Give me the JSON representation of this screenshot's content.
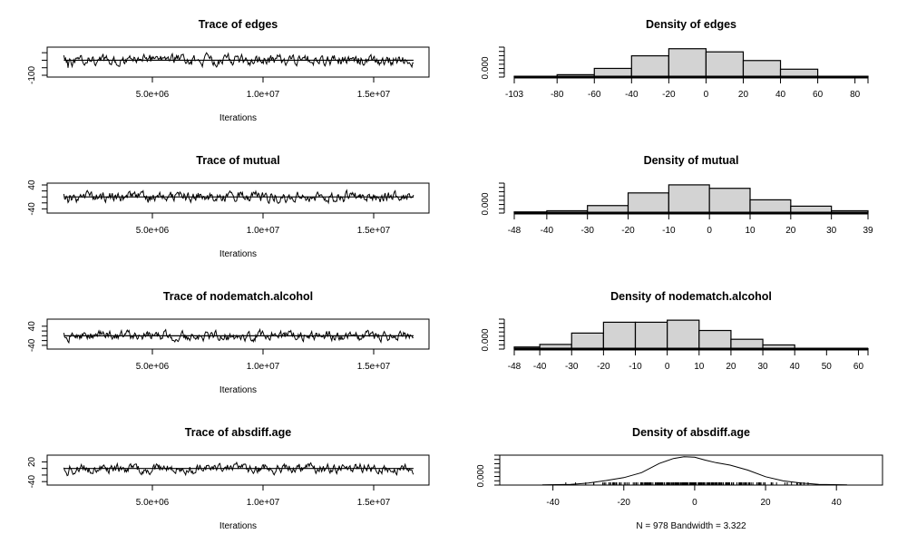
{
  "chart_data": [
    {
      "type": "line",
      "title": "Trace of edges",
      "xlabel": "Iterations",
      "ylabel": "",
      "x_ticks": [
        5000000,
        10000000,
        15000000
      ],
      "x_tick_labels": [
        "5.0e+06",
        "1.0e+07",
        "1.5e+07"
      ],
      "xlim": [
        1000000,
        16800000
      ],
      "y_ticks": [
        -100,
        -50,
        0,
        50
      ],
      "y_tick_labels": [
        "-100",
        "",
        "",
        ""
      ],
      "ylim": [
        -100,
        75
      ],
      "reference_line": 0,
      "series_seed": 11,
      "series_amplitude": 28,
      "n_points": 978
    },
    {
      "type": "bar",
      "title": "Density of edges",
      "xlabel": "",
      "ylabel": "",
      "y_tick_labels": [
        "0.000"
      ],
      "x_tick_labels": [
        "-103",
        "-80",
        "-60",
        "-40",
        "-20",
        "0",
        "20",
        "40",
        "60",
        "80"
      ],
      "x_ticks": [
        -103,
        -80,
        -60,
        -40,
        -20,
        0,
        20,
        40,
        60,
        80
      ],
      "xlim": [
        -103,
        87
      ],
      "bins": [
        [
          -103,
          -80
        ],
        [
          -80,
          -60
        ],
        [
          -60,
          -40
        ],
        [
          -40,
          -20
        ],
        [
          -20,
          0
        ],
        [
          0,
          20
        ],
        [
          20,
          40
        ],
        [
          40,
          60
        ],
        [
          60,
          87
        ]
      ],
      "values": [
        0.0005,
        0.0015,
        0.0055,
        0.0135,
        0.018,
        0.016,
        0.0105,
        0.005,
        0.0005
      ],
      "ylim": [
        0,
        0.019
      ]
    },
    {
      "type": "line",
      "title": "Trace of mutual",
      "xlabel": "Iterations",
      "ylabel": "",
      "x_ticks": [
        5000000,
        10000000,
        15000000
      ],
      "x_tick_labels": [
        "5.0e+06",
        "1.0e+07",
        "1.5e+07"
      ],
      "xlim": [
        1000000,
        16800000
      ],
      "y_ticks": [
        -40,
        -20,
        0,
        20,
        40
      ],
      "y_tick_labels": [
        "-40",
        "",
        "",
        "",
        "40"
      ],
      "ylim": [
        -48,
        40
      ],
      "reference_line": 0,
      "series_seed": 23,
      "series_amplitude": 14,
      "n_points": 978
    },
    {
      "type": "bar",
      "title": "Density of mutual",
      "xlabel": "",
      "ylabel": "",
      "y_tick_labels": [
        "0.000"
      ],
      "x_tick_labels": [
        "-48",
        "-40",
        "-30",
        "-20",
        "-10",
        "0",
        "10",
        "20",
        "30",
        "39"
      ],
      "x_ticks": [
        -48,
        -40,
        -30,
        -20,
        -10,
        0,
        10,
        20,
        30,
        39
      ],
      "xlim": [
        -48,
        39
      ],
      "bins": [
        [
          -48,
          -40
        ],
        [
          -40,
          -30
        ],
        [
          -30,
          -20
        ],
        [
          -20,
          -10
        ],
        [
          -10,
          0
        ],
        [
          0,
          10
        ],
        [
          10,
          20
        ],
        [
          20,
          30
        ],
        [
          30,
          39
        ]
      ],
      "values": [
        0.001,
        0.002,
        0.0065,
        0.0175,
        0.0245,
        0.0215,
        0.0115,
        0.006,
        0.002
      ],
      "ylim": [
        0,
        0.026
      ]
    },
    {
      "type": "line",
      "title": "Trace of nodematch.alcohol",
      "xlabel": "Iterations",
      "ylabel": "",
      "x_ticks": [
        5000000,
        10000000,
        15000000
      ],
      "x_tick_labels": [
        "5.0e+06",
        "1.0e+07",
        "1.5e+07"
      ],
      "xlim": [
        1000000,
        16800000
      ],
      "y_ticks": [
        -40,
        -20,
        0,
        20,
        40
      ],
      "y_tick_labels": [
        "-40",
        "",
        "",
        "",
        "40"
      ],
      "ylim": [
        -48,
        62
      ],
      "reference_line": 0,
      "series_seed": 37,
      "series_amplitude": 16,
      "n_points": 978
    },
    {
      "type": "bar",
      "title": "Density of nodematch.alcohol",
      "xlabel": "",
      "ylabel": "",
      "y_tick_labels": [
        "0.000"
      ],
      "x_tick_labels": [
        "-48",
        "-40",
        "-30",
        "-20",
        "-10",
        "0",
        "10",
        "20",
        "30",
        "40",
        "50",
        "60"
      ],
      "x_ticks": [
        -48,
        -40,
        -30,
        -20,
        -10,
        0,
        10,
        20,
        30,
        40,
        50,
        60
      ],
      "xlim": [
        -48,
        63
      ],
      "bins": [
        [
          -48,
          -40
        ],
        [
          -40,
          -30
        ],
        [
          -30,
          -20
        ],
        [
          -20,
          -10
        ],
        [
          -10,
          0
        ],
        [
          0,
          10
        ],
        [
          10,
          20
        ],
        [
          20,
          30
        ],
        [
          30,
          40
        ],
        [
          40,
          63
        ]
      ],
      "values": [
        0.002,
        0.0045,
        0.0155,
        0.026,
        0.026,
        0.028,
        0.018,
        0.0095,
        0.004,
        0.0005
      ],
      "ylim": [
        0,
        0.029
      ]
    },
    {
      "type": "line",
      "title": "Trace of absdiff.age",
      "xlabel": "Iterations",
      "ylabel": "",
      "x_ticks": [
        5000000,
        10000000,
        15000000
      ],
      "x_tick_labels": [
        "5.0e+06",
        "1.0e+07",
        "1.5e+07"
      ],
      "xlim": [
        1000000,
        16800000
      ],
      "y_ticks": [
        -40,
        -20,
        0,
        20
      ],
      "y_tick_labels": [
        "-40",
        "",
        "",
        "20"
      ],
      "ylim": [
        -45,
        35
      ],
      "reference_line": 0,
      "series_seed": 51,
      "series_amplitude": 12,
      "n_points": 978
    },
    {
      "type": "line",
      "title": "Density of absdiff.age",
      "xlabel": "N = 978   Bandwidth = 3.322",
      "ylabel": "",
      "y_tick_labels": [
        "0.000"
      ],
      "x_ticks": [
        -40,
        -20,
        0,
        20,
        40
      ],
      "x_tick_labels": [
        "-40",
        "-20",
        "0",
        "20",
        "40"
      ],
      "xlim": [
        -55,
        53
      ],
      "ylim": [
        0,
        0.036
      ],
      "density_x": [
        -43,
        -35,
        -30,
        -25,
        -20,
        -15,
        -10,
        -6,
        -3,
        0,
        3,
        6,
        10,
        15,
        20,
        25,
        30,
        35,
        43
      ],
      "density_y": [
        0.0003,
        0.0008,
        0.0025,
        0.0055,
        0.009,
        0.015,
        0.026,
        0.032,
        0.034,
        0.0335,
        0.03,
        0.027,
        0.024,
        0.018,
        0.01,
        0.005,
        0.0025,
        0.0008,
        0.0003
      ],
      "rug_range": [
        -43,
        43
      ]
    }
  ]
}
